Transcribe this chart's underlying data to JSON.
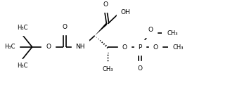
{
  "background": "#ffffff",
  "line_color": "#000000",
  "line_width": 1.2,
  "font_size": 6.5,
  "fig_width": 3.54,
  "fig_height": 1.38,
  "dpi": 100,
  "xlim": [
    0,
    10.0
  ],
  "ylim": [
    0,
    4.0
  ]
}
